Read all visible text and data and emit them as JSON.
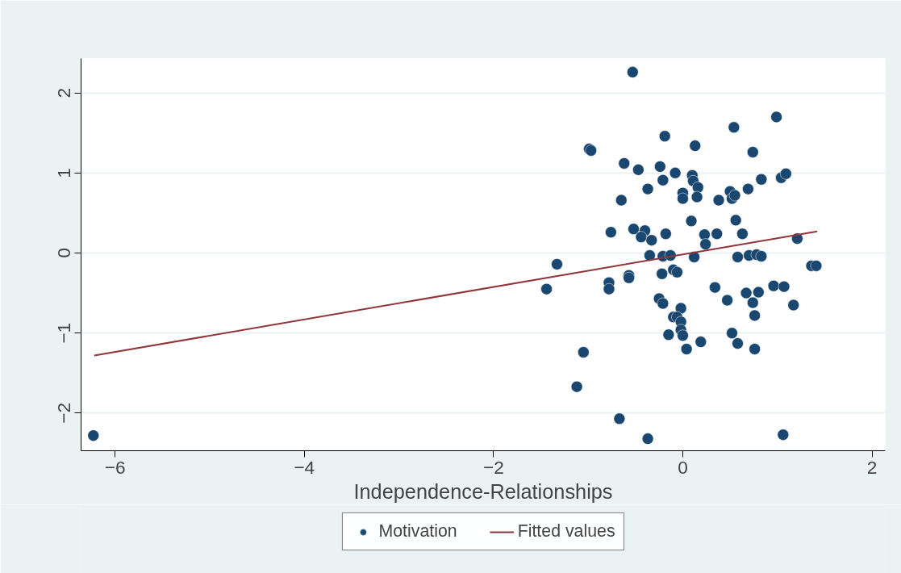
{
  "chart_data": {
    "type": "scatter",
    "xlabel": "Independence-Relationships",
    "xlim": [
      -6.36,
      2.14
    ],
    "ylim": [
      -2.47,
      2.43
    ],
    "xticks": [
      -6,
      -4,
      -2,
      0,
      2
    ],
    "yticks": [
      -2,
      -1,
      0,
      1,
      2
    ],
    "grid": "y",
    "legend": "bottom",
    "series": [
      {
        "name": "Motivation",
        "color": "#1a476f",
        "marker": "circle",
        "x": [
          -6.23,
          -1.44,
          -1.33,
          -1.05,
          -1.12,
          -0.99,
          -0.97,
          -0.53,
          -0.19,
          -0.62,
          -0.47,
          -0.24,
          -0.08,
          -0.21,
          -0.37,
          -0.65,
          0.0,
          0.0,
          -0.76,
          -0.52,
          -0.4,
          -0.44,
          -0.33,
          -0.18,
          -0.35,
          -0.21,
          -0.13,
          -0.78,
          -0.78,
          -0.57,
          -0.57,
          -0.22,
          -0.1,
          -0.06,
          -0.25,
          -0.21,
          -0.02,
          -0.1,
          -0.06,
          -0.02,
          -0.02,
          0.0,
          -0.15,
          0.04,
          -0.67,
          -0.37,
          0.99,
          0.54,
          0.13,
          0.74,
          0.1,
          0.11,
          0.16,
          0.15,
          0.38,
          0.5,
          0.52,
          0.55,
          0.69,
          0.83,
          1.04,
          1.09,
          0.09,
          0.56,
          0.23,
          0.36,
          0.63,
          0.24,
          1.21,
          0.12,
          0.58,
          0.7,
          0.78,
          0.83,
          1.36,
          1.41,
          0.34,
          0.47,
          0.67,
          0.8,
          0.74,
          0.76,
          0.96,
          1.07,
          1.17,
          0.19,
          0.52,
          0.58,
          0.76,
          1.06
        ],
        "values": [
          -2.28,
          -0.45,
          -0.14,
          -1.24,
          -1.67,
          1.3,
          1.28,
          2.26,
          1.46,
          1.12,
          1.04,
          1.08,
          1.0,
          0.91,
          0.8,
          0.66,
          0.75,
          0.68,
          0.26,
          0.3,
          0.28,
          0.2,
          0.16,
          0.24,
          -0.03,
          -0.04,
          -0.03,
          -0.37,
          -0.45,
          -0.28,
          -0.31,
          -0.26,
          -0.21,
          -0.24,
          -0.57,
          -0.63,
          -0.69,
          -0.8,
          -0.8,
          -0.86,
          -0.96,
          -1.03,
          -1.02,
          -1.2,
          -2.07,
          -2.32,
          1.7,
          1.57,
          1.34,
          1.26,
          0.97,
          0.9,
          0.82,
          0.7,
          0.66,
          0.77,
          0.68,
          0.72,
          0.8,
          0.92,
          0.94,
          0.99,
          0.4,
          0.41,
          0.23,
          0.24,
          0.24,
          0.11,
          0.18,
          -0.05,
          -0.05,
          -0.03,
          -0.02,
          -0.04,
          -0.16,
          -0.16,
          -0.43,
          -0.59,
          -0.5,
          -0.49,
          -0.62,
          -0.78,
          -0.41,
          -0.42,
          -0.65,
          -1.11,
          -1.0,
          -1.13,
          -1.2,
          -2.27
        ]
      },
      {
        "name": "Fitted values",
        "type": "line",
        "color": "#90353b",
        "line_style": "solid",
        "x": [
          -6.22,
          1.42
        ],
        "values": [
          -1.28,
          0.27
        ]
      }
    ]
  }
}
